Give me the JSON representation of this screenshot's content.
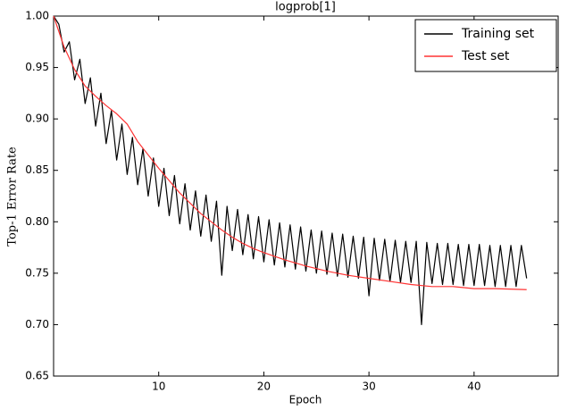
{
  "chart_data": {
    "type": "line",
    "title": "logprob[1]",
    "x_label": "Epoch",
    "y_label": "Top-1 Error Rate",
    "xlim": [
      0,
      48
    ],
    "ylim": [
      0.65,
      1.0
    ],
    "xticks": [
      10,
      20,
      30,
      40
    ],
    "yticks": [
      {
        "value": 0.65,
        "label": "0.65"
      },
      {
        "value": 0.7,
        "label": "0.70"
      },
      {
        "value": 0.75,
        "label": "0.75"
      },
      {
        "value": 0.8,
        "label": "0.80"
      },
      {
        "value": 0.85,
        "label": "0.85"
      },
      {
        "value": 0.9,
        "label": "0.90"
      },
      {
        "value": 0.95,
        "label": "0.95"
      },
      {
        "value": 1.0,
        "label": "1.00"
      }
    ],
    "grid": false,
    "legend": "upper right",
    "series": [
      {
        "name": "Training set",
        "color": "#000000",
        "x": [
          0,
          0.5,
          1,
          1.5,
          2,
          2.5,
          3,
          3.5,
          4,
          4.5,
          5,
          5.5,
          6,
          6.5,
          7,
          7.5,
          8,
          8.5,
          9,
          9.5,
          10,
          10.5,
          11,
          11.5,
          12,
          12.5,
          13,
          13.5,
          14,
          14.5,
          15,
          15.5,
          16,
          16.5,
          17,
          17.5,
          18,
          18.5,
          19,
          19.5,
          20,
          20.5,
          21,
          21.5,
          22,
          22.5,
          23,
          23.5,
          24,
          24.5,
          25,
          25.5,
          26,
          26.5,
          27,
          27.5,
          28,
          28.5,
          29,
          29.5,
          30,
          30.5,
          31,
          31.5,
          32,
          32.5,
          33,
          33.5,
          34,
          34.5,
          35,
          35.5,
          36,
          36.5,
          37,
          37.5,
          38,
          38.5,
          39,
          39.5,
          40,
          40.5,
          41,
          41.5,
          42,
          42.5,
          43,
          43.5,
          44,
          44.5,
          45
        ],
        "values": [
          1.0,
          0.992,
          0.965,
          0.975,
          0.938,
          0.958,
          0.915,
          0.94,
          0.893,
          0.925,
          0.876,
          0.908,
          0.86,
          0.895,
          0.846,
          0.882,
          0.836,
          0.871,
          0.825,
          0.862,
          0.815,
          0.852,
          0.806,
          0.845,
          0.798,
          0.837,
          0.792,
          0.83,
          0.786,
          0.826,
          0.781,
          0.82,
          0.748,
          0.815,
          0.772,
          0.812,
          0.768,
          0.807,
          0.764,
          0.805,
          0.761,
          0.802,
          0.758,
          0.799,
          0.756,
          0.797,
          0.754,
          0.795,
          0.752,
          0.792,
          0.75,
          0.791,
          0.749,
          0.789,
          0.747,
          0.788,
          0.746,
          0.786,
          0.745,
          0.785,
          0.728,
          0.784,
          0.743,
          0.783,
          0.742,
          0.782,
          0.741,
          0.781,
          0.741,
          0.781,
          0.7,
          0.78,
          0.74,
          0.779,
          0.739,
          0.779,
          0.739,
          0.778,
          0.738,
          0.778,
          0.738,
          0.778,
          0.738,
          0.777,
          0.737,
          0.777,
          0.737,
          0.777,
          0.737,
          0.777,
          0.745
        ]
      },
      {
        "name": "Test set",
        "color": "#ff3333",
        "x": [
          0,
          1,
          2,
          3,
          4,
          5,
          6,
          7,
          8,
          9,
          10,
          11,
          12,
          13,
          14,
          15,
          16,
          17,
          18,
          19,
          20,
          22,
          24,
          26,
          28,
          30,
          32,
          34,
          36,
          38,
          40,
          42,
          45
        ],
        "values": [
          1.0,
          0.97,
          0.948,
          0.932,
          0.922,
          0.913,
          0.905,
          0.895,
          0.878,
          0.865,
          0.852,
          0.84,
          0.828,
          0.818,
          0.808,
          0.8,
          0.792,
          0.785,
          0.779,
          0.774,
          0.77,
          0.763,
          0.757,
          0.752,
          0.748,
          0.745,
          0.742,
          0.739,
          0.737,
          0.737,
          0.735,
          0.735,
          0.734
        ]
      }
    ]
  }
}
